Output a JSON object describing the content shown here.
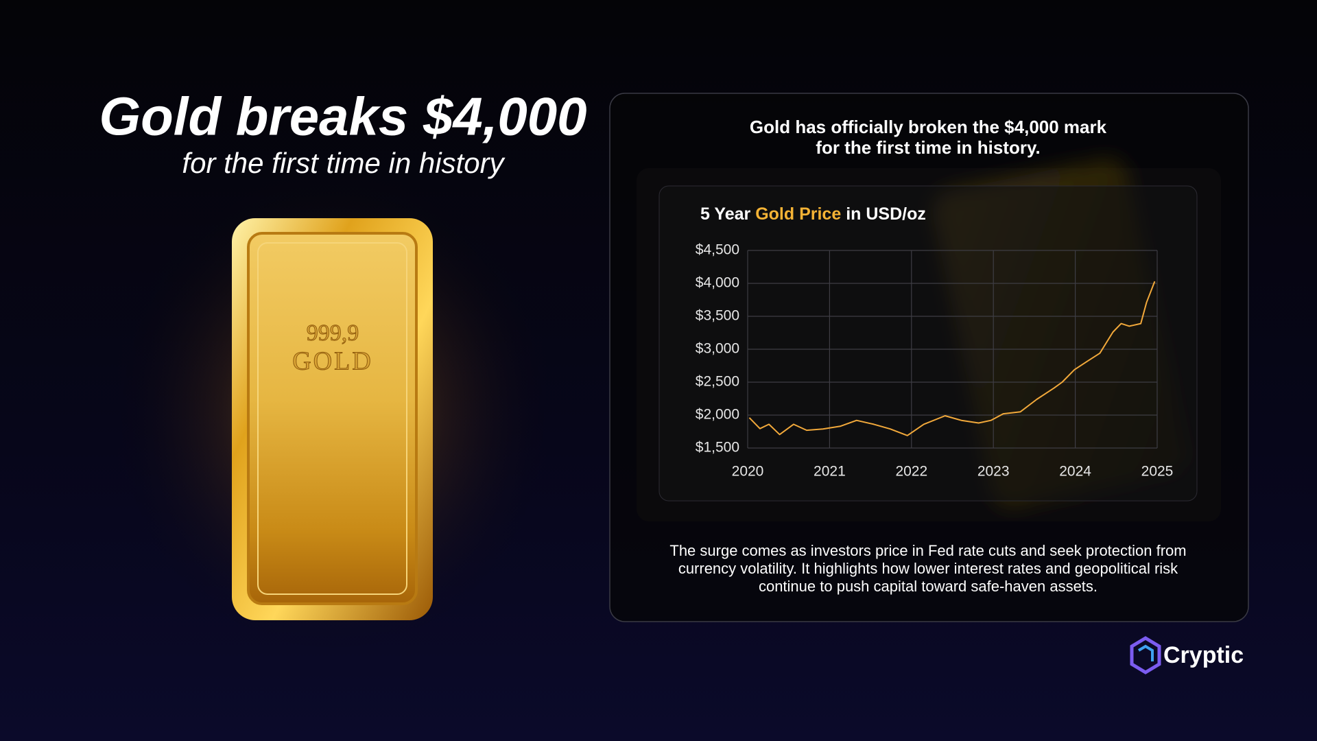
{
  "header": {
    "title": "Gold breaks $4,000",
    "subtitle": "for the first time in history"
  },
  "bar_image": {
    "line1": "999,9",
    "line2": "GOLD"
  },
  "card": {
    "heading_line1": "Gold has officially broken the $4,000 mark",
    "heading_line2": "for the first time in history.",
    "body": "The surge comes as investors price in Fed rate cuts and seek protection from currency volatility. It highlights how lower interest rates and geopolitical risk continue to push capital toward safe-haven assets."
  },
  "logo": "Cryptic",
  "chart_data": {
    "type": "line",
    "title": [
      "5 Year",
      "Gold Price",
      "in USD/oz"
    ],
    "title_highlight_color": "#f5b335",
    "x": [
      2020.02,
      2020.15,
      2020.26,
      2020.39,
      2020.56,
      2020.72,
      2020.92,
      2021.13,
      2021.33,
      2021.54,
      2021.74,
      2021.95,
      2022.15,
      2022.41,
      2022.61,
      2022.82,
      2022.97,
      2023.12,
      2023.33,
      2023.53,
      2023.74,
      2023.84,
      2023.99,
      2024.15,
      2024.3,
      2024.46,
      2024.56,
      2024.66,
      2024.8,
      2024.87,
      2024.97
    ],
    "series": [
      {
        "name": "Gold Price",
        "color": "#f2a93b",
        "values": [
          1960,
          1795,
          1860,
          1705,
          1860,
          1770,
          1790,
          1830,
          1920,
          1860,
          1790,
          1690,
          1860,
          1990,
          1920,
          1880,
          1920,
          2020,
          2050,
          2240,
          2410,
          2500,
          2690,
          2820,
          2940,
          3260,
          3390,
          3350,
          3390,
          3710,
          4030
        ]
      }
    ],
    "xlim": [
      2020,
      2025
    ],
    "xticks": [
      2020,
      2021,
      2022,
      2023,
      2024,
      2025
    ],
    "ylim": [
      1500,
      4500
    ],
    "yticks": [
      {
        "value": 1500,
        "label": "$1,500"
      },
      {
        "value": 2000,
        "label": "$2,000"
      },
      {
        "value": 2500,
        "label": "$2,500"
      },
      {
        "value": 3000,
        "label": "$3,000"
      },
      {
        "value": 3500,
        "label": "$3,500"
      },
      {
        "value": 4000,
        "label": "$4,000"
      },
      {
        "value": 4500,
        "label": "$4,500"
      }
    ],
    "grid": true
  }
}
